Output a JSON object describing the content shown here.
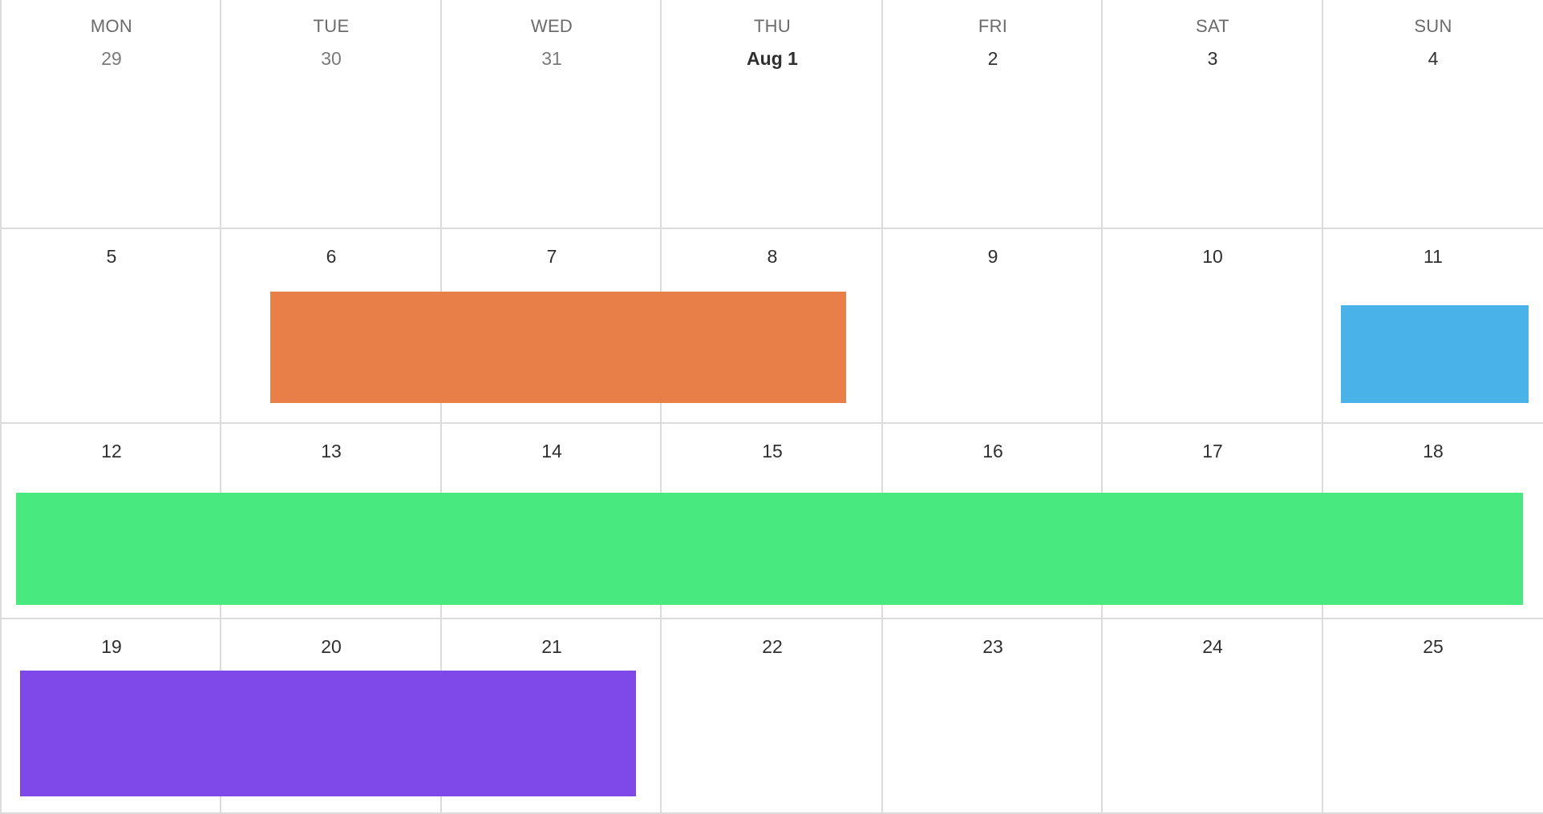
{
  "weekdays": [
    "MON",
    "TUE",
    "WED",
    "THU",
    "FRI",
    "SAT",
    "SUN"
  ],
  "weeks": [
    {
      "dates": [
        "29",
        "30",
        "31",
        "Aug 1",
        "2",
        "3",
        "4"
      ],
      "muted": [
        true,
        true,
        true,
        false,
        false,
        false,
        false
      ]
    },
    {
      "dates": [
        "5",
        "6",
        "7",
        "8",
        "9",
        "10",
        "11"
      ],
      "muted": [
        false,
        false,
        false,
        false,
        false,
        false,
        false
      ]
    },
    {
      "dates": [
        "12",
        "13",
        "14",
        "15",
        "16",
        "17",
        "18"
      ],
      "muted": [
        false,
        false,
        false,
        false,
        false,
        false,
        false
      ]
    },
    {
      "dates": [
        "19",
        "20",
        "21",
        "22",
        "23",
        "24",
        "25"
      ],
      "muted": [
        false,
        false,
        false,
        false,
        false,
        false,
        false
      ]
    }
  ],
  "events": [
    {
      "id": "event-orange",
      "color": "#e97f48",
      "start_date": "6",
      "end_date": "8"
    },
    {
      "id": "event-blue",
      "color": "#48b2e9",
      "start_date": "11",
      "end_date": "11"
    },
    {
      "id": "event-green",
      "color": "#48e97f",
      "start_date": "12",
      "end_date": "18"
    },
    {
      "id": "event-purple",
      "color": "#7f48e9",
      "start_date": "19",
      "end_date": "21"
    }
  ]
}
